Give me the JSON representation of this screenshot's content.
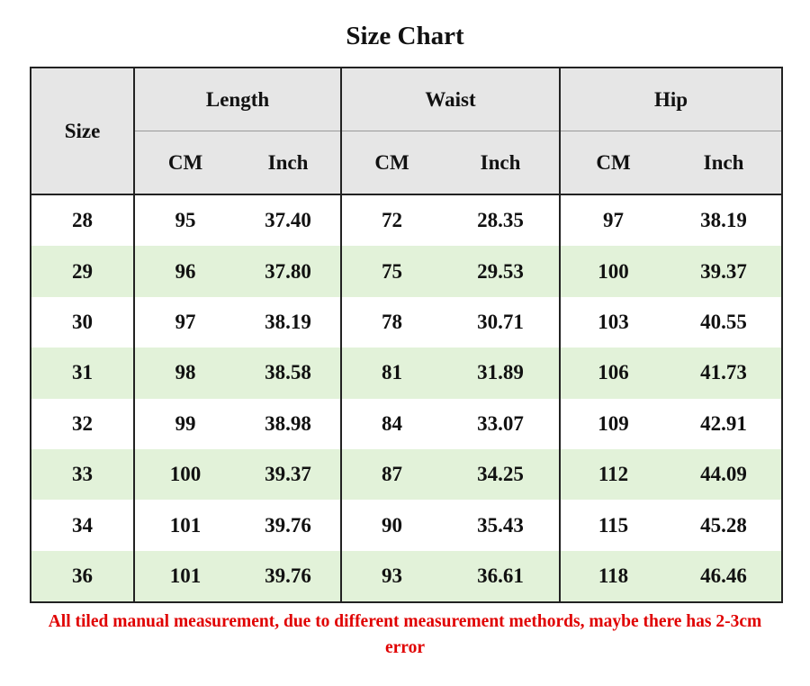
{
  "title": "Size Chart",
  "table": {
    "header": {
      "size": "Size",
      "groups": [
        {
          "label": "Length",
          "units": [
            "CM",
            "Inch"
          ]
        },
        {
          "label": "Waist",
          "units": [
            "CM",
            "Inch"
          ]
        },
        {
          "label": "Hip",
          "units": [
            "CM",
            "Inch"
          ]
        }
      ]
    },
    "rows": [
      [
        "28",
        "95",
        "37.40",
        "72",
        "28.35",
        "97",
        "38.19"
      ],
      [
        "29",
        "96",
        "37.80",
        "75",
        "29.53",
        "100",
        "39.37"
      ],
      [
        "30",
        "97",
        "38.19",
        "78",
        "30.71",
        "103",
        "40.55"
      ],
      [
        "31",
        "98",
        "38.58",
        "81",
        "31.89",
        "106",
        "41.73"
      ],
      [
        "32",
        "99",
        "38.98",
        "84",
        "33.07",
        "109",
        "42.91"
      ],
      [
        "33",
        "100",
        "39.37",
        "87",
        "34.25",
        "112",
        "44.09"
      ],
      [
        "34",
        "101",
        "39.76",
        "90",
        "35.43",
        "115",
        "45.28"
      ],
      [
        "36",
        "101",
        "39.76",
        "93",
        "36.61",
        "118",
        "46.46"
      ]
    ]
  },
  "note": "All tiled manual measurement, due to different measurement methords, maybe there has 2-3cm error"
}
